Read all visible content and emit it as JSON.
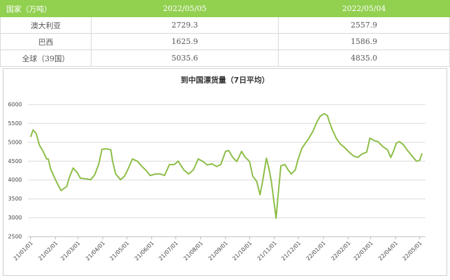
{
  "table": {
    "header": [
      "国家（万吨）",
      "2022/05/05",
      "2022/05/04"
    ],
    "rows": [
      [
        "澳大利亚",
        "2729.3",
        "2557.9"
      ],
      [
        "巴西",
        "1625.9",
        "1586.9"
      ],
      [
        "全球（39国）",
        "5035.6",
        "4835.0"
      ]
    ]
  },
  "chart_data": {
    "type": "line",
    "title": "到中国漂货量（7日平均）",
    "x": [
      "21/01/01",
      "21/01/04",
      "21/01/08",
      "21/01/12",
      "21/01/16",
      "21/01/21",
      "21/01/23",
      "21/01/26",
      "21/01/30",
      "21/02/03",
      "21/02/08",
      "21/02/15",
      "21/02/18",
      "21/02/23",
      "21/02/28",
      "21/03/04",
      "21/03/12",
      "21/03/17",
      "21/03/22",
      "21/03/27",
      "21/03/31",
      "21/04/05",
      "21/04/11",
      "21/04/13",
      "21/04/17",
      "21/04/23",
      "21/04/28",
      "21/05/02",
      "21/05/08",
      "21/05/14",
      "21/05/19",
      "21/05/26",
      "21/05/30",
      "21/06/06",
      "21/06/12",
      "21/06/17",
      "21/06/23",
      "21/06/29",
      "21/07/04",
      "21/07/11",
      "21/07/17",
      "21/07/23",
      "21/07/29",
      "21/08/04",
      "21/08/09",
      "21/08/15",
      "21/08/21",
      "21/08/26",
      "21/09/01",
      "21/09/05",
      "21/09/10",
      "21/09/15",
      "21/09/21",
      "21/09/25",
      "21/10/01",
      "21/10/05",
      "21/10/10",
      "21/10/14",
      "21/10/17",
      "21/10/22",
      "21/10/25",
      "21/10/28",
      "21/11/01",
      "21/11/03",
      "21/11/06",
      "21/11/09",
      "21/11/14",
      "21/11/18",
      "21/11/22",
      "21/11/27",
      "21/11/30",
      "21/12/05",
      "21/12/09",
      "21/12/14",
      "21/12/19",
      "21/12/24",
      "21/12/28",
      "22/01/02",
      "22/01/06",
      "22/01/09",
      "22/01/12",
      "22/01/17",
      "22/01/22",
      "22/01/27",
      "22/02/02",
      "22/02/08",
      "22/02/13",
      "22/02/18",
      "22/02/24",
      "22/02/28",
      "22/03/05",
      "22/03/10",
      "22/03/16",
      "22/03/22",
      "22/03/26",
      "22/03/29",
      "22/04/02",
      "22/04/06",
      "22/04/11",
      "22/04/16",
      "22/04/22",
      "22/04/27",
      "22/05/01",
      "22/05/04"
    ],
    "series": [
      {
        "color": "#8cbd46",
        "values": [
          5140,
          5325,
          5230,
          4925,
          4780,
          4560,
          4560,
          4290,
          4100,
          3920,
          3720,
          3830,
          4050,
          4320,
          4200,
          4050,
          4030,
          4010,
          4140,
          4430,
          4815,
          4830,
          4800,
          4520,
          4160,
          4010,
          4100,
          4270,
          4560,
          4500,
          4380,
          4230,
          4120,
          4160,
          4160,
          4120,
          4410,
          4410,
          4500,
          4270,
          4160,
          4270,
          4560,
          4490,
          4400,
          4430,
          4360,
          4410,
          4760,
          4780,
          4600,
          4490,
          4760,
          4620,
          4490,
          4100,
          3960,
          3610,
          3940,
          4580,
          4320,
          3980,
          3320,
          2990,
          3700,
          4380,
          4410,
          4270,
          4160,
          4270,
          4520,
          4830,
          4960,
          5110,
          5290,
          5540,
          5690,
          5760,
          5710,
          5510,
          5340,
          5110,
          4960,
          4870,
          4740,
          4630,
          4600,
          4690,
          4740,
          5110,
          5050,
          5020,
          4890,
          4800,
          4600,
          4740,
          4980,
          5020,
          4930,
          4780,
          4630,
          4500,
          4520,
          4710
        ]
      }
    ],
    "xlim": [
      "20/12/29",
      "22/05/08"
    ],
    "xticks": [
      "21/01/01",
      "21/02/01",
      "21/03/01",
      "21/04/01",
      "21/05/01",
      "21/06/01",
      "21/07/01",
      "21/08/01",
      "21/09/01",
      "21/10/01",
      "21/11/01",
      "21/12/01",
      "22/01/01",
      "22/02/01",
      "22/03/01",
      "22/04/01",
      "22/05/01"
    ],
    "ylim": [
      2500,
      6000
    ],
    "yticks": [
      2500,
      3000,
      3500,
      4000,
      4500,
      5000,
      5500,
      6000
    ],
    "grid": true
  }
}
